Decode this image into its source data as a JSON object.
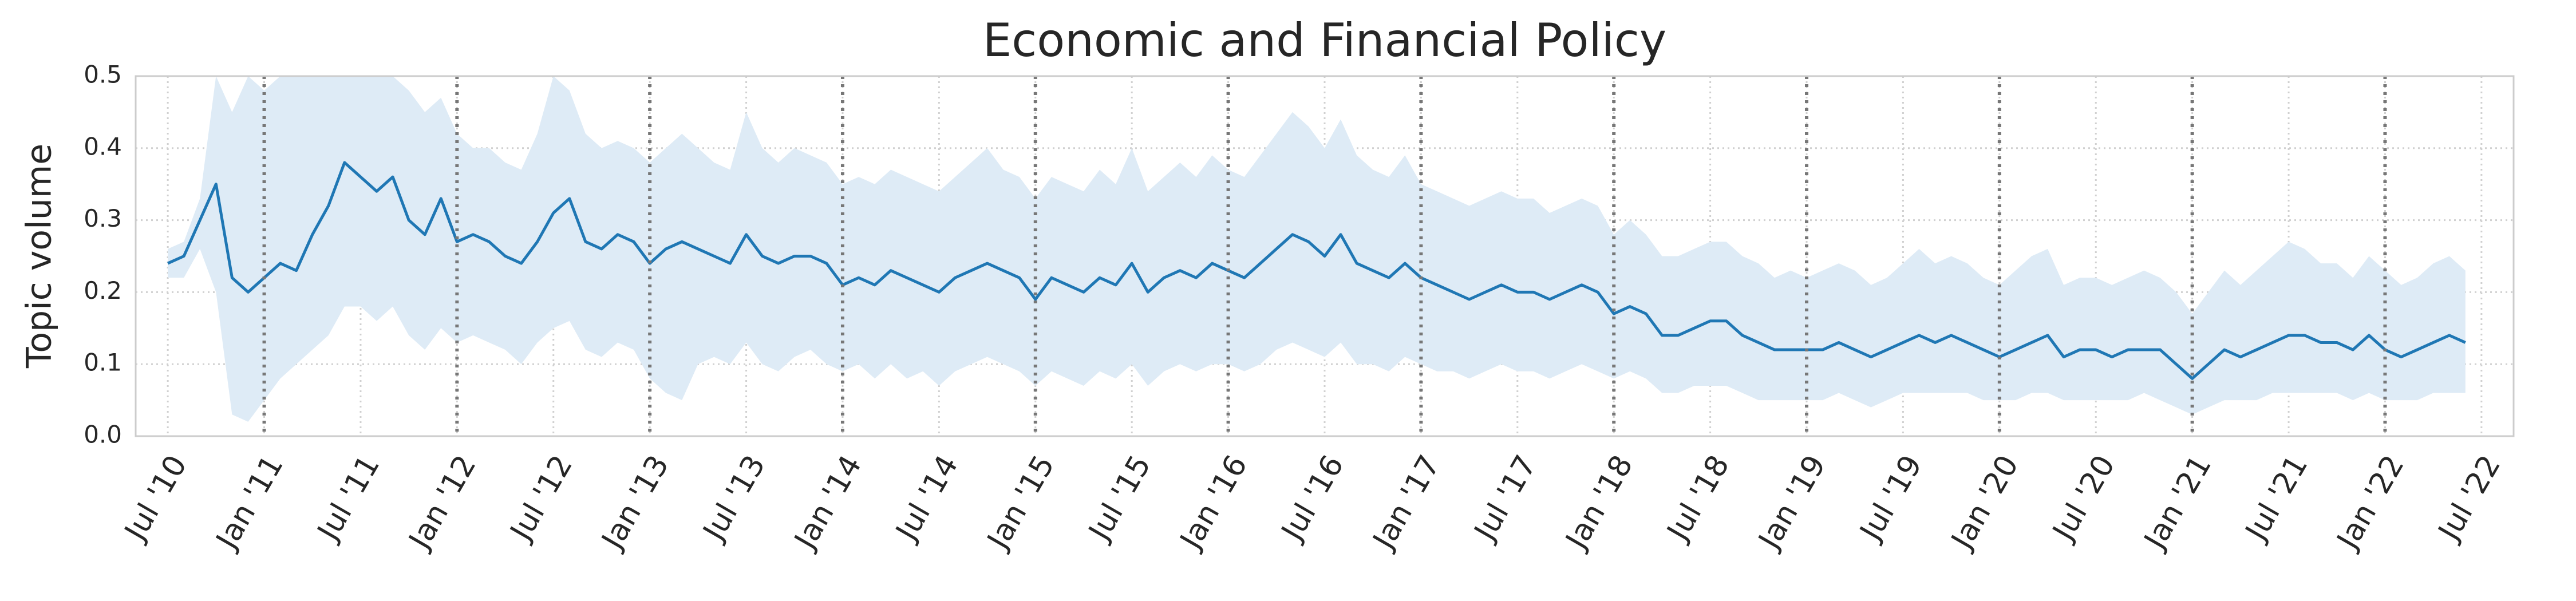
{
  "chart_data": {
    "type": "line",
    "title": "Economic and Financial Policy",
    "y_label": "Topic volume",
    "x": [
      "2010-07",
      "2010-08",
      "2010-09",
      "2010-10",
      "2010-11",
      "2010-12",
      "2011-01",
      "2011-02",
      "2011-03",
      "2011-04",
      "2011-05",
      "2011-06",
      "2011-07",
      "2011-08",
      "2011-09",
      "2011-10",
      "2011-11",
      "2011-12",
      "2012-01",
      "2012-02",
      "2012-03",
      "2012-04",
      "2012-05",
      "2012-06",
      "2012-07",
      "2012-08",
      "2012-09",
      "2012-10",
      "2012-11",
      "2012-12",
      "2013-01",
      "2013-02",
      "2013-03",
      "2013-04",
      "2013-05",
      "2013-06",
      "2013-07",
      "2013-08",
      "2013-09",
      "2013-10",
      "2013-11",
      "2013-12",
      "2014-01",
      "2014-02",
      "2014-03",
      "2014-04",
      "2014-05",
      "2014-06",
      "2014-07",
      "2014-08",
      "2014-09",
      "2014-10",
      "2014-11",
      "2014-12",
      "2015-01",
      "2015-02",
      "2015-03",
      "2015-04",
      "2015-05",
      "2015-06",
      "2015-07",
      "2015-08",
      "2015-09",
      "2015-10",
      "2015-11",
      "2015-12",
      "2016-01",
      "2016-02",
      "2016-03",
      "2016-04",
      "2016-05",
      "2016-06",
      "2016-07",
      "2016-08",
      "2016-09",
      "2016-10",
      "2016-11",
      "2016-12",
      "2017-01",
      "2017-02",
      "2017-03",
      "2017-04",
      "2017-05",
      "2017-06",
      "2017-07",
      "2017-08",
      "2017-09",
      "2017-10",
      "2017-11",
      "2017-12",
      "2018-01",
      "2018-02",
      "2018-03",
      "2018-04",
      "2018-05",
      "2018-06",
      "2018-07",
      "2018-08",
      "2018-09",
      "2018-10",
      "2018-11",
      "2018-12",
      "2019-01",
      "2019-02",
      "2019-03",
      "2019-04",
      "2019-05",
      "2019-06",
      "2019-07",
      "2019-08",
      "2019-09",
      "2019-10",
      "2019-11",
      "2019-12",
      "2020-01",
      "2020-02",
      "2020-03",
      "2020-04",
      "2020-05",
      "2020-06",
      "2020-07",
      "2020-08",
      "2020-09",
      "2020-10",
      "2020-11",
      "2020-12",
      "2021-01",
      "2021-02",
      "2021-03",
      "2021-04",
      "2021-05",
      "2021-06",
      "2021-07",
      "2021-08",
      "2021-09",
      "2021-10",
      "2021-11",
      "2021-12",
      "2022-01",
      "2022-02",
      "2022-03",
      "2022-04",
      "2022-05",
      "2022-06"
    ],
    "series": [
      {
        "color": "#1f77b4",
        "values": [
          0.24,
          0.25,
          0.3,
          0.35,
          0.22,
          0.2,
          0.22,
          0.24,
          0.23,
          0.28,
          0.32,
          0.38,
          0.36,
          0.34,
          0.36,
          0.3,
          0.28,
          0.33,
          0.27,
          0.28,
          0.27,
          0.25,
          0.24,
          0.27,
          0.31,
          0.33,
          0.27,
          0.26,
          0.28,
          0.27,
          0.24,
          0.26,
          0.27,
          0.26,
          0.25,
          0.24,
          0.28,
          0.25,
          0.24,
          0.25,
          0.25,
          0.24,
          0.21,
          0.22,
          0.21,
          0.23,
          0.22,
          0.21,
          0.2,
          0.22,
          0.23,
          0.24,
          0.23,
          0.22,
          0.19,
          0.22,
          0.21,
          0.2,
          0.22,
          0.21,
          0.24,
          0.2,
          0.22,
          0.23,
          0.22,
          0.24,
          0.23,
          0.22,
          0.24,
          0.26,
          0.28,
          0.27,
          0.25,
          0.28,
          0.24,
          0.23,
          0.22,
          0.24,
          0.22,
          0.21,
          0.2,
          0.19,
          0.2,
          0.21,
          0.2,
          0.2,
          0.19,
          0.2,
          0.21,
          0.2,
          0.17,
          0.18,
          0.17,
          0.14,
          0.14,
          0.15,
          0.16,
          0.16,
          0.14,
          0.13,
          0.12,
          0.12,
          0.12,
          0.12,
          0.13,
          0.12,
          0.11,
          0.12,
          0.13,
          0.14,
          0.13,
          0.14,
          0.13,
          0.12,
          0.11,
          0.12,
          0.13,
          0.14,
          0.11,
          0.12,
          0.12,
          0.11,
          0.12,
          0.12,
          0.12,
          0.1,
          0.08,
          0.1,
          0.12,
          0.11,
          0.12,
          0.13,
          0.14,
          0.14,
          0.13,
          0.13,
          0.12,
          0.14,
          0.12,
          0.11,
          0.12,
          0.13,
          0.14,
          0.13
        ]
      }
    ],
    "band": {
      "color": "#deebf6",
      "high": [
        0.26,
        0.27,
        0.33,
        0.5,
        0.45,
        0.5,
        0.48,
        0.5,
        0.5,
        0.5,
        0.5,
        0.5,
        0.5,
        0.5,
        0.5,
        0.48,
        0.45,
        0.47,
        0.42,
        0.4,
        0.4,
        0.38,
        0.37,
        0.42,
        0.5,
        0.48,
        0.42,
        0.4,
        0.41,
        0.4,
        0.38,
        0.4,
        0.42,
        0.4,
        0.38,
        0.37,
        0.45,
        0.4,
        0.38,
        0.4,
        0.39,
        0.38,
        0.35,
        0.36,
        0.35,
        0.37,
        0.36,
        0.35,
        0.34,
        0.36,
        0.38,
        0.4,
        0.37,
        0.36,
        0.33,
        0.36,
        0.35,
        0.34,
        0.37,
        0.35,
        0.4,
        0.34,
        0.36,
        0.38,
        0.36,
        0.39,
        0.37,
        0.36,
        0.39,
        0.42,
        0.45,
        0.43,
        0.4,
        0.44,
        0.39,
        0.37,
        0.36,
        0.39,
        0.35,
        0.34,
        0.33,
        0.32,
        0.33,
        0.34,
        0.33,
        0.33,
        0.31,
        0.32,
        0.33,
        0.32,
        0.28,
        0.3,
        0.28,
        0.25,
        0.25,
        0.26,
        0.27,
        0.27,
        0.25,
        0.24,
        0.22,
        0.23,
        0.22,
        0.23,
        0.24,
        0.23,
        0.21,
        0.22,
        0.24,
        0.26,
        0.24,
        0.25,
        0.24,
        0.22,
        0.21,
        0.23,
        0.25,
        0.26,
        0.21,
        0.22,
        0.22,
        0.21,
        0.22,
        0.23,
        0.22,
        0.2,
        0.17,
        0.2,
        0.23,
        0.21,
        0.23,
        0.25,
        0.27,
        0.26,
        0.24,
        0.24,
        0.22,
        0.25,
        0.23,
        0.21,
        0.22,
        0.24,
        0.25,
        0.23
      ],
      "low": [
        0.22,
        0.22,
        0.26,
        0.2,
        0.03,
        0.02,
        0.05,
        0.08,
        0.1,
        0.12,
        0.14,
        0.18,
        0.18,
        0.16,
        0.18,
        0.14,
        0.12,
        0.15,
        0.13,
        0.14,
        0.13,
        0.12,
        0.1,
        0.13,
        0.15,
        0.16,
        0.12,
        0.11,
        0.13,
        0.12,
        0.08,
        0.06,
        0.05,
        0.1,
        0.11,
        0.1,
        0.13,
        0.1,
        0.09,
        0.11,
        0.12,
        0.1,
        0.09,
        0.1,
        0.08,
        0.1,
        0.08,
        0.09,
        0.07,
        0.09,
        0.1,
        0.11,
        0.1,
        0.09,
        0.07,
        0.09,
        0.08,
        0.07,
        0.09,
        0.08,
        0.1,
        0.07,
        0.09,
        0.1,
        0.09,
        0.1,
        0.1,
        0.09,
        0.1,
        0.12,
        0.13,
        0.12,
        0.11,
        0.13,
        0.1,
        0.1,
        0.09,
        0.11,
        0.1,
        0.09,
        0.09,
        0.08,
        0.09,
        0.1,
        0.09,
        0.09,
        0.08,
        0.09,
        0.1,
        0.09,
        0.08,
        0.09,
        0.08,
        0.06,
        0.06,
        0.07,
        0.07,
        0.07,
        0.06,
        0.05,
        0.05,
        0.05,
        0.05,
        0.05,
        0.06,
        0.05,
        0.04,
        0.05,
        0.06,
        0.06,
        0.06,
        0.06,
        0.06,
        0.05,
        0.05,
        0.05,
        0.06,
        0.06,
        0.05,
        0.05,
        0.05,
        0.05,
        0.05,
        0.06,
        0.05,
        0.04,
        0.03,
        0.04,
        0.05,
        0.05,
        0.05,
        0.06,
        0.06,
        0.06,
        0.06,
        0.06,
        0.05,
        0.06,
        0.05,
        0.05,
        0.05,
        0.06,
        0.06,
        0.06
      ]
    },
    "xlim": [
      "2010-05",
      "2022-09"
    ],
    "xticks": [
      {
        "value": "2010-07",
        "label": "Jul '10"
      },
      {
        "value": "2011-01",
        "label": "Jan '11"
      },
      {
        "value": "2011-07",
        "label": "Jul '11"
      },
      {
        "value": "2012-01",
        "label": "Jan '12"
      },
      {
        "value": "2012-07",
        "label": "Jul '12"
      },
      {
        "value": "2013-01",
        "label": "Jan '13"
      },
      {
        "value": "2013-07",
        "label": "Jul '13"
      },
      {
        "value": "2014-01",
        "label": "Jan '14"
      },
      {
        "value": "2014-07",
        "label": "Jul '14"
      },
      {
        "value": "2015-01",
        "label": "Jan '15"
      },
      {
        "value": "2015-07",
        "label": "Jul '15"
      },
      {
        "value": "2016-01",
        "label": "Jan '16"
      },
      {
        "value": "2016-07",
        "label": "Jul '16"
      },
      {
        "value": "2017-01",
        "label": "Jan '17"
      },
      {
        "value": "2017-07",
        "label": "Jul '17"
      },
      {
        "value": "2018-01",
        "label": "Jan '18"
      },
      {
        "value": "2018-07",
        "label": "Jul '18"
      },
      {
        "value": "2019-01",
        "label": "Jan '19"
      },
      {
        "value": "2019-07",
        "label": "Jul '19"
      },
      {
        "value": "2020-01",
        "label": "Jan '20"
      },
      {
        "value": "2020-07",
        "label": "Jul '20"
      },
      {
        "value": "2021-01",
        "label": "Jan '21"
      },
      {
        "value": "2021-07",
        "label": "Jul '21"
      },
      {
        "value": "2022-01",
        "label": "Jan '22"
      },
      {
        "value": "2022-07",
        "label": "Jul '22"
      }
    ],
    "vlines": [
      "2011-01",
      "2012-01",
      "2013-01",
      "2014-01",
      "2015-01",
      "2016-01",
      "2017-01",
      "2018-01",
      "2019-01",
      "2020-01",
      "2021-01",
      "2022-01"
    ],
    "ylim": [
      0,
      0.5
    ],
    "yticks": [
      {
        "value": 0,
        "label": "0.0"
      },
      0.1,
      0.2,
      0.3,
      0.4,
      0.5
    ],
    "grid": true
  }
}
